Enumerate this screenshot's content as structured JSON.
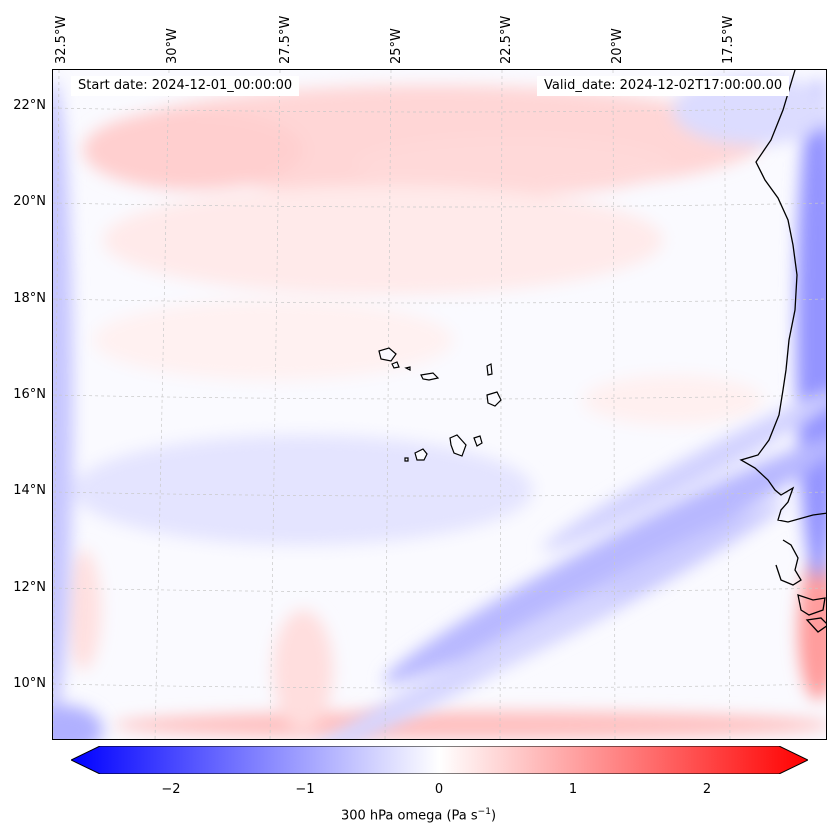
{
  "map": {
    "lon_labels": [
      "32.5°W",
      "30°W",
      "27.5°W",
      "25°W",
      "22.5°W",
      "20°W",
      "17.5°W"
    ],
    "lat_labels": [
      "22°N",
      "20°N",
      "18°N",
      "16°N",
      "14°N",
      "12°N",
      "10°N"
    ],
    "start_date": "Start date: 2024-12-01_00:00:00",
    "valid_date": "Valid_date: 2024-12-02T17:00:00.00",
    "colors": {
      "negative": "#0000ff",
      "zero": "#ffffff",
      "positive": "#ff0000",
      "coastline": "#000000"
    }
  },
  "colorbar": {
    "ticks": [
      "−2",
      "−1",
      "0",
      "1",
      "2"
    ],
    "tick_values": [
      -2,
      -1,
      0,
      1,
      2
    ],
    "range": [
      -2.5,
      2.5
    ],
    "label_main": "300 hPa omega (Pa s",
    "label_sup": "−1",
    "label_end": ")"
  }
}
